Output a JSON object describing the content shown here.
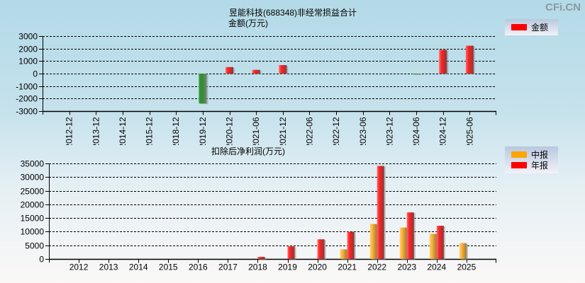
{
  "watermark": "CFi.CN",
  "chart_data": [
    {
      "type": "bar",
      "title": "昱能科技(688348)非经常损益合计",
      "subtitle": "金额(万元)",
      "xlabel": "",
      "ylabel": "金额(万元)",
      "ylim": [
        -3000,
        3000
      ],
      "yticks": [
        3000,
        2000,
        1000,
        0,
        -1000,
        -2000,
        -3000
      ],
      "grid": true,
      "legend_position": "top-right",
      "categories": [
        "2012-12",
        "2013-12",
        "2014-12",
        "2015-12",
        "2018-12",
        "2019-12",
        "2020-12",
        "2021-06",
        "2021-12",
        "2022-06",
        "2022-12",
        "2023-06",
        "2023-12",
        "2024-06",
        "2024-12",
        "2025-06"
      ],
      "series": [
        {
          "name": "金额",
          "color": "#ff0000",
          "negative_color": "#2e8b2e",
          "values": [
            null,
            null,
            null,
            null,
            null,
            -2390,
            520,
            300,
            680,
            null,
            null,
            null,
            null,
            -50,
            1900,
            2230
          ]
        }
      ]
    },
    {
      "type": "bar",
      "title": "扣除后净利润(万元)",
      "xlabel": "",
      "ylabel": "万元",
      "ylim": [
        0,
        35000
      ],
      "yticks": [
        35000,
        30000,
        25000,
        20000,
        15000,
        10000,
        5000,
        0
      ],
      "grid": true,
      "legend_position": "top-right",
      "categories": [
        "2012",
        "2013",
        "2014",
        "2015",
        "2016",
        "2017",
        "2018",
        "2019",
        "2020",
        "2021",
        "2022",
        "2023",
        "2024",
        "2025"
      ],
      "series": [
        {
          "name": "中报",
          "color": "#ffa500",
          "values": [
            null,
            null,
            null,
            null,
            null,
            null,
            null,
            null,
            null,
            3500,
            12800,
            11500,
            9200,
            5800
          ]
        },
        {
          "name": "年报",
          "color": "#ff0000",
          "values": [
            null,
            null,
            null,
            null,
            null,
            null,
            770,
            4600,
            7200,
            9950,
            34100,
            17050,
            12150,
            null
          ]
        }
      ]
    }
  ],
  "legend_top": {
    "items": [
      {
        "label": "金额",
        "color": "#ff0000"
      }
    ]
  },
  "legend_bottom": {
    "items": [
      {
        "label": "中报",
        "color": "#ffa500"
      },
      {
        "label": "年报",
        "color": "#ff0000"
      }
    ]
  }
}
